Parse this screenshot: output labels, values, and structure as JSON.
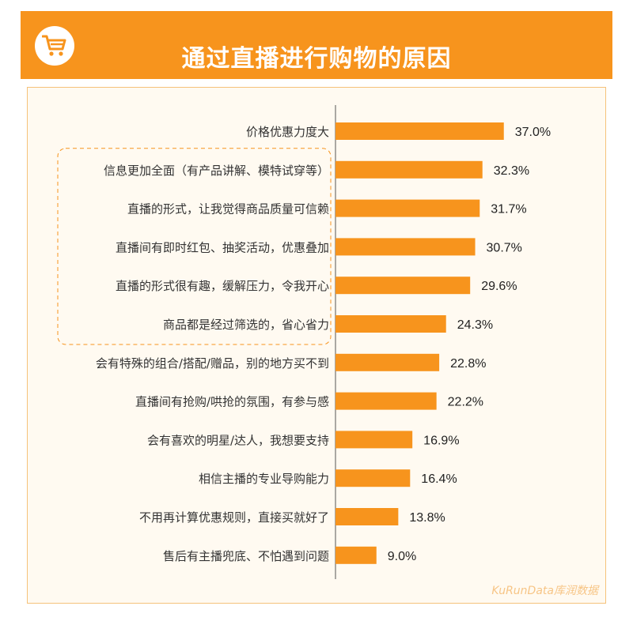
{
  "header": {
    "title": "通过直播进行购物的原因",
    "icon": "shopping-cart-icon"
  },
  "watermark": "KuRunData库润数据",
  "colors": {
    "accent": "#f7941d",
    "panel_border": "#f5c27a",
    "panel_bg": "#fffaf1",
    "highlight_border": "#f7941d"
  },
  "chart_data": {
    "type": "bar",
    "orientation": "horizontal",
    "categories": [
      "价格优惠力度大",
      "信息更加全面（有产品讲解、模特试穿等）",
      "直播的形式，让我觉得商品质量可信赖",
      "直播间有即时红包、抽奖活动，优惠叠加",
      "直播的形式很有趣，缓解压力，令我开心",
      "商品都是经过筛选的，省心省力",
      "会有特殊的组合/搭配/赠品，别的地方买不到",
      "直播间有抢购/哄抢的氛围，有参与感",
      "会有喜欢的明星/达人，我想要支持",
      "相信主播的专业导购能力",
      "不用再计算优惠规则，直接买就好了",
      "售后有主播兜底、不怕遇到问题"
    ],
    "values": [
      37.0,
      32.3,
      31.7,
      30.7,
      29.6,
      24.3,
      22.8,
      22.2,
      16.9,
      16.4,
      13.8,
      9.0
    ],
    "value_labels": [
      "37.0%",
      "32.3%",
      "31.7%",
      "30.7%",
      "29.6%",
      "24.3%",
      "22.8%",
      "22.2%",
      "16.9%",
      "16.4%",
      "13.8%",
      "9.0%"
    ],
    "highlighted_categories": [
      1,
      2,
      3,
      4,
      5
    ],
    "xlim": [
      0,
      40
    ],
    "grid": false,
    "legend": "none"
  }
}
